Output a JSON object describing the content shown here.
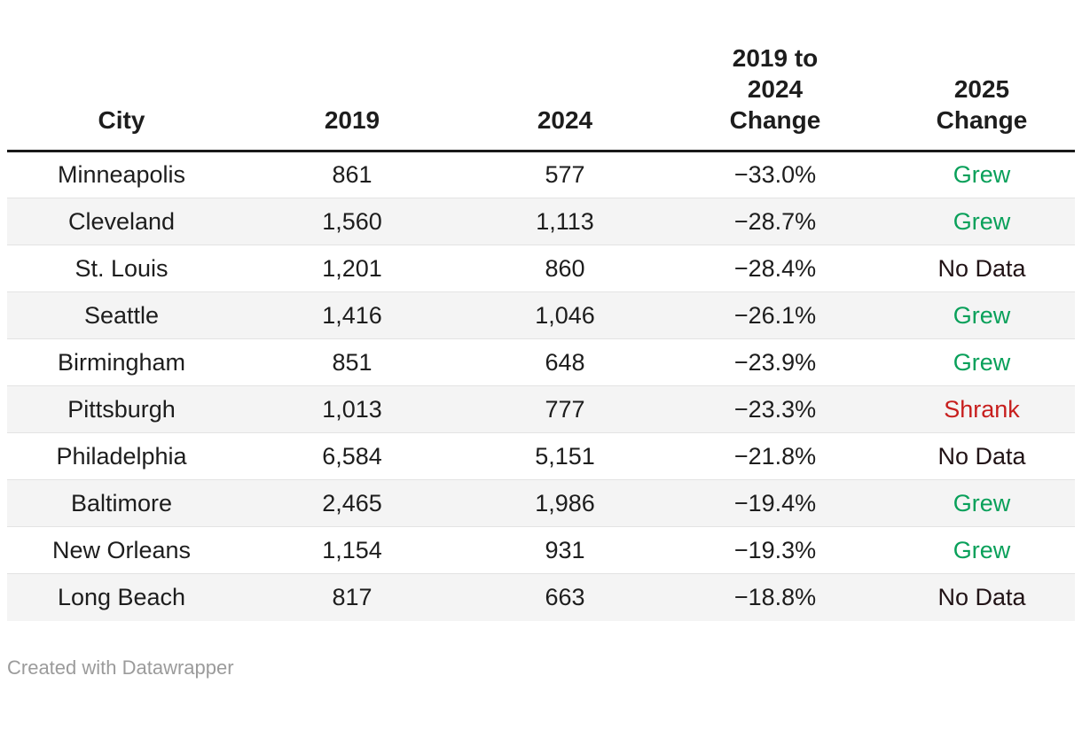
{
  "chart_data": {
    "type": "table",
    "columns": [
      "City",
      "2019",
      "2024",
      "2019 to 2024 Change",
      "2025 Change"
    ],
    "rows": [
      [
        "Minneapolis",
        "861",
        "577",
        "−33.0%",
        "Grew"
      ],
      [
        "Cleveland",
        "1,560",
        "1,113",
        "−28.7%",
        "Grew"
      ],
      [
        "St. Louis",
        "1,201",
        "860",
        "−28.4%",
        "No Data"
      ],
      [
        "Seattle",
        "1,416",
        "1,046",
        "−26.1%",
        "Grew"
      ],
      [
        "Birmingham",
        "851",
        "648",
        "−23.9%",
        "Grew"
      ],
      [
        "Pittsburgh",
        "1,013",
        "777",
        "−23.3%",
        "Shrank"
      ],
      [
        "Philadelphia",
        "6,584",
        "5,151",
        "−21.8%",
        "No Data"
      ],
      [
        "Baltimore",
        "2,465",
        "1,986",
        "−19.4%",
        "Grew"
      ],
      [
        "New Orleans",
        "1,154",
        "931",
        "−19.3%",
        "Grew"
      ],
      [
        "Long Beach",
        "817",
        "663",
        "−18.8%",
        "No Data"
      ]
    ]
  },
  "header": {
    "display_labels": [
      "City",
      "2019",
      "2024",
      "2019 to\n2024\nChange",
      "2025\nChange"
    ]
  },
  "status_colors": {
    "Grew": "#09a05a",
    "Shrank": "#c71e1d",
    "No Data": "#211316"
  },
  "colors": {
    "text": "#1d1d1d",
    "row_alt": "#f4f4f4",
    "row_border": "#e3e3e3",
    "header_border": "#1a1a1a",
    "footer_text": "#9b9b9b"
  },
  "footer": {
    "attribution": "Created with Datawrapper"
  }
}
